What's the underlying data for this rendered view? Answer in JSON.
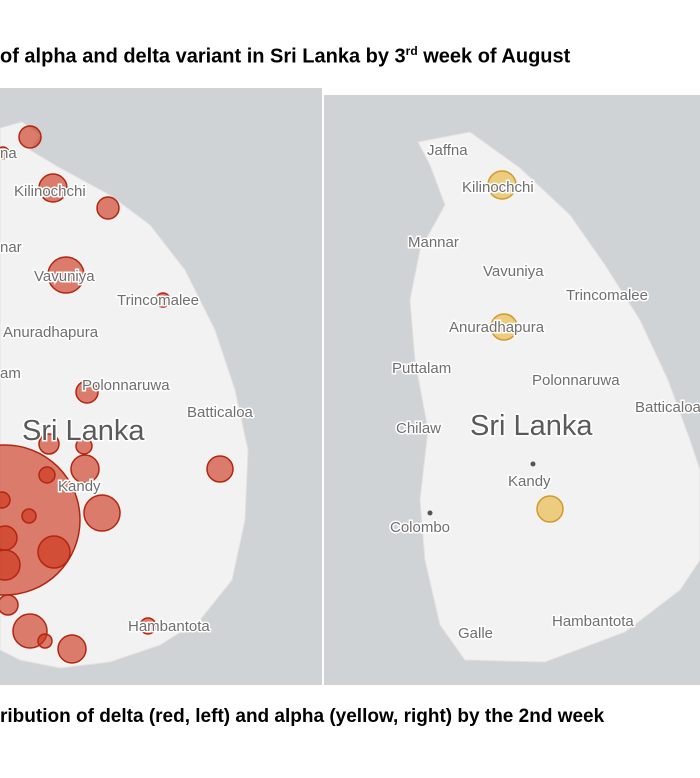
{
  "title": {
    "before": "of alpha and delta variant in Sri Lanka by 3",
    "sup": "rd",
    "after": " week of August"
  },
  "caption": "ribution of delta (red, left) and alpha (yellow, right) by the 2nd week",
  "left_map": {
    "labels": [
      "na",
      "Kilinochchi",
      "nar",
      "Vavuniya",
      "Trincomalee",
      "Anuradhapura",
      "am",
      "Polonnaruwa",
      "Batticaloa",
      "Sri Lanka",
      "Kandy",
      "Hambantota"
    ]
  },
  "right_map": {
    "labels": [
      "Jaffna",
      "Kilinochchi",
      "Mannar",
      "Vavuniya",
      "Trincomalee",
      "Anuradhapura",
      "Puttalam",
      "Polonnaruwa",
      "Batticaloa",
      "Chilaw",
      "Sri Lanka",
      "Kandy",
      "Colombo",
      "Galle",
      "Hambantota"
    ]
  }
}
